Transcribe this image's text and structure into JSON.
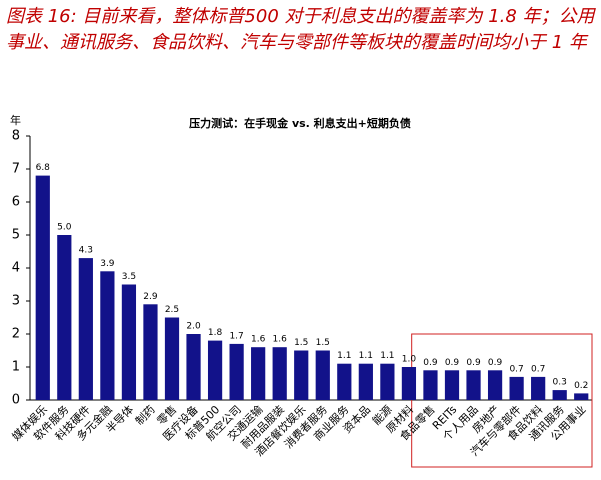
{
  "chart_data": {
    "type": "bar",
    "title": "图表 16: 目前来看，整体标普500 对于利息支出的覆盖率为 1.8 年；公用事业、通讯服务、食品饮料、汽车与零部件等板块的覆盖时间均小于 1 年",
    "subtitle": "压力测试：在手现金 vs. 利息支出+短期负债",
    "y_label": "年",
    "categories": [
      "媒体娱乐",
      "软件服务",
      "科技硬件",
      "多元金融",
      "半导体",
      "制药",
      "零售",
      "医疗设备",
      "标普500",
      "航空公司",
      "交通运输",
      "耐用品服装",
      "酒店餐饮娱乐",
      "消费者服务",
      "商业服务",
      "资本品",
      "能源",
      "原材料",
      "食品零售",
      "REITs",
      "个人用品",
      "房地产",
      "汽车与零部件",
      "食品饮料",
      "通讯服务",
      "公用事业"
    ],
    "values": [
      6.8,
      5.0,
      4.3,
      3.9,
      3.5,
      2.9,
      2.5,
      2.0,
      1.8,
      1.7,
      1.6,
      1.6,
      1.5,
      1.5,
      1.1,
      1.1,
      1.1,
      1.0,
      0.9,
      0.9,
      0.9,
      0.9,
      0.7,
      0.7,
      0.3,
      0.2
    ],
    "value_labels": [
      "6.8",
      "5.0",
      "4.3",
      "3.9",
      "3.5",
      "2.9",
      "2.5",
      "2.0",
      "1.8",
      "1.7",
      "1.6",
      "1.6",
      "1.5",
      "1.5",
      "1.1",
      "1.1",
      "1.1",
      "1.0",
      "0.9",
      "0.9",
      "0.9",
      "0.9",
      "0.7",
      "0.7",
      "0.3",
      "0.2"
    ],
    "color": "#12128a",
    "ylim": [
      0,
      8
    ],
    "yticks": [
      0,
      1,
      2,
      3,
      4,
      5,
      6,
      7,
      8
    ],
    "grid": false
  }
}
